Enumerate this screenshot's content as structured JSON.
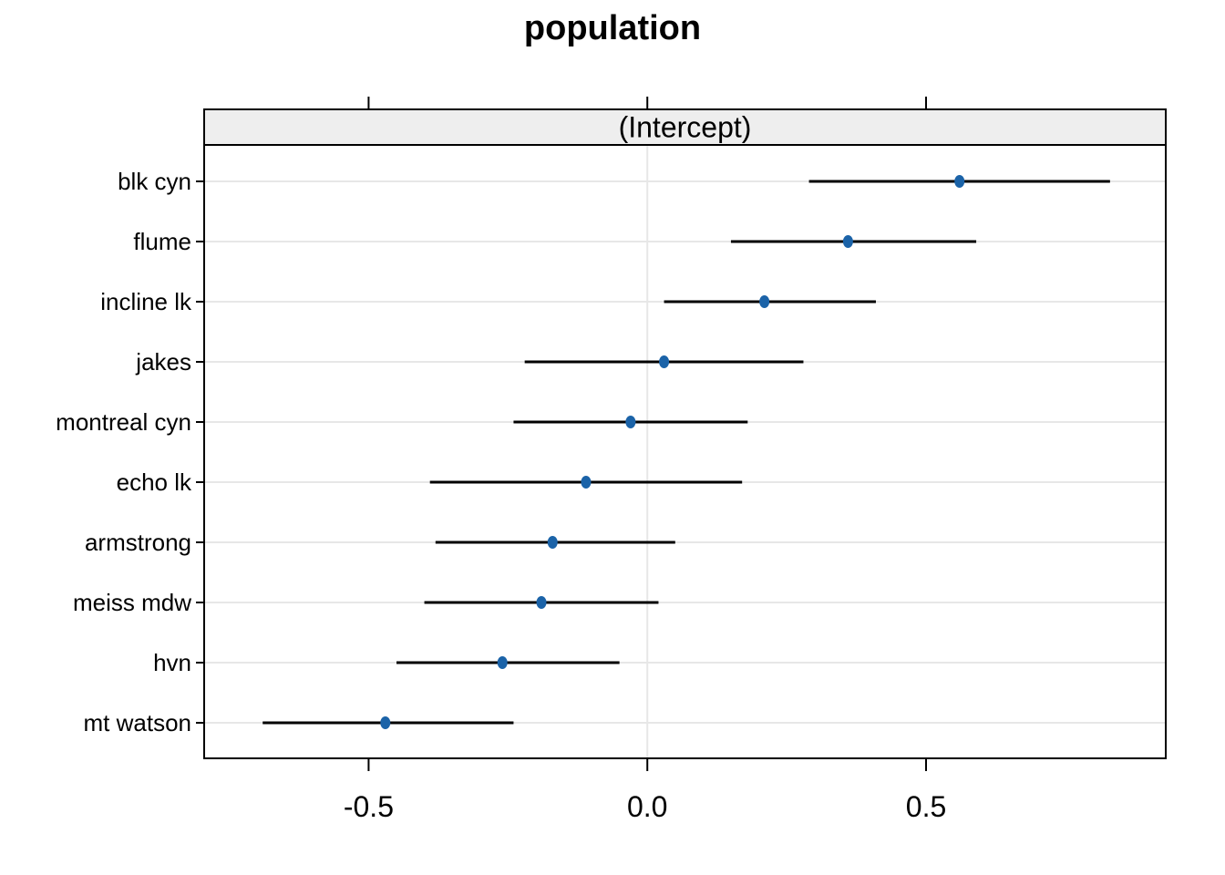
{
  "chart_data": {
    "type": "dot-interval",
    "title": "population",
    "panel_label": "(Intercept)",
    "categories": [
      "blk cyn",
      "flume",
      "incline lk",
      "jakes",
      "montreal cyn",
      "echo lk",
      "armstrong",
      "meiss mdw",
      "hvn",
      "mt watson"
    ],
    "series": [
      {
        "name": "(Intercept)",
        "estimates": [
          0.56,
          0.36,
          0.21,
          0.03,
          -0.03,
          -0.11,
          -0.17,
          -0.19,
          -0.26,
          -0.47
        ],
        "lower": [
          0.29,
          0.15,
          0.03,
          -0.22,
          -0.24,
          -0.39,
          -0.38,
          -0.4,
          -0.45,
          -0.69
        ],
        "upper": [
          0.83,
          0.59,
          0.41,
          0.28,
          0.18,
          0.17,
          0.05,
          0.02,
          -0.05,
          -0.24
        ]
      }
    ],
    "x_ticks": [
      -0.5,
      0.0,
      0.5
    ],
    "x_tick_labels": [
      "-0.5",
      "0.0",
      "0.5"
    ],
    "xlim": [
      -0.795,
      0.93
    ],
    "ylabel": "",
    "xlabel": "",
    "grid": {
      "horizontal_row_lines": true,
      "zero_reference_line": true,
      "legend": "none"
    },
    "colors": {
      "point": "#1b63a8",
      "interval": "#000000",
      "grid": "#e7e7e7",
      "strip_bg": "#eeeeee",
      "border": "#000000",
      "text": "#000000",
      "background": "#ffffff"
    }
  }
}
